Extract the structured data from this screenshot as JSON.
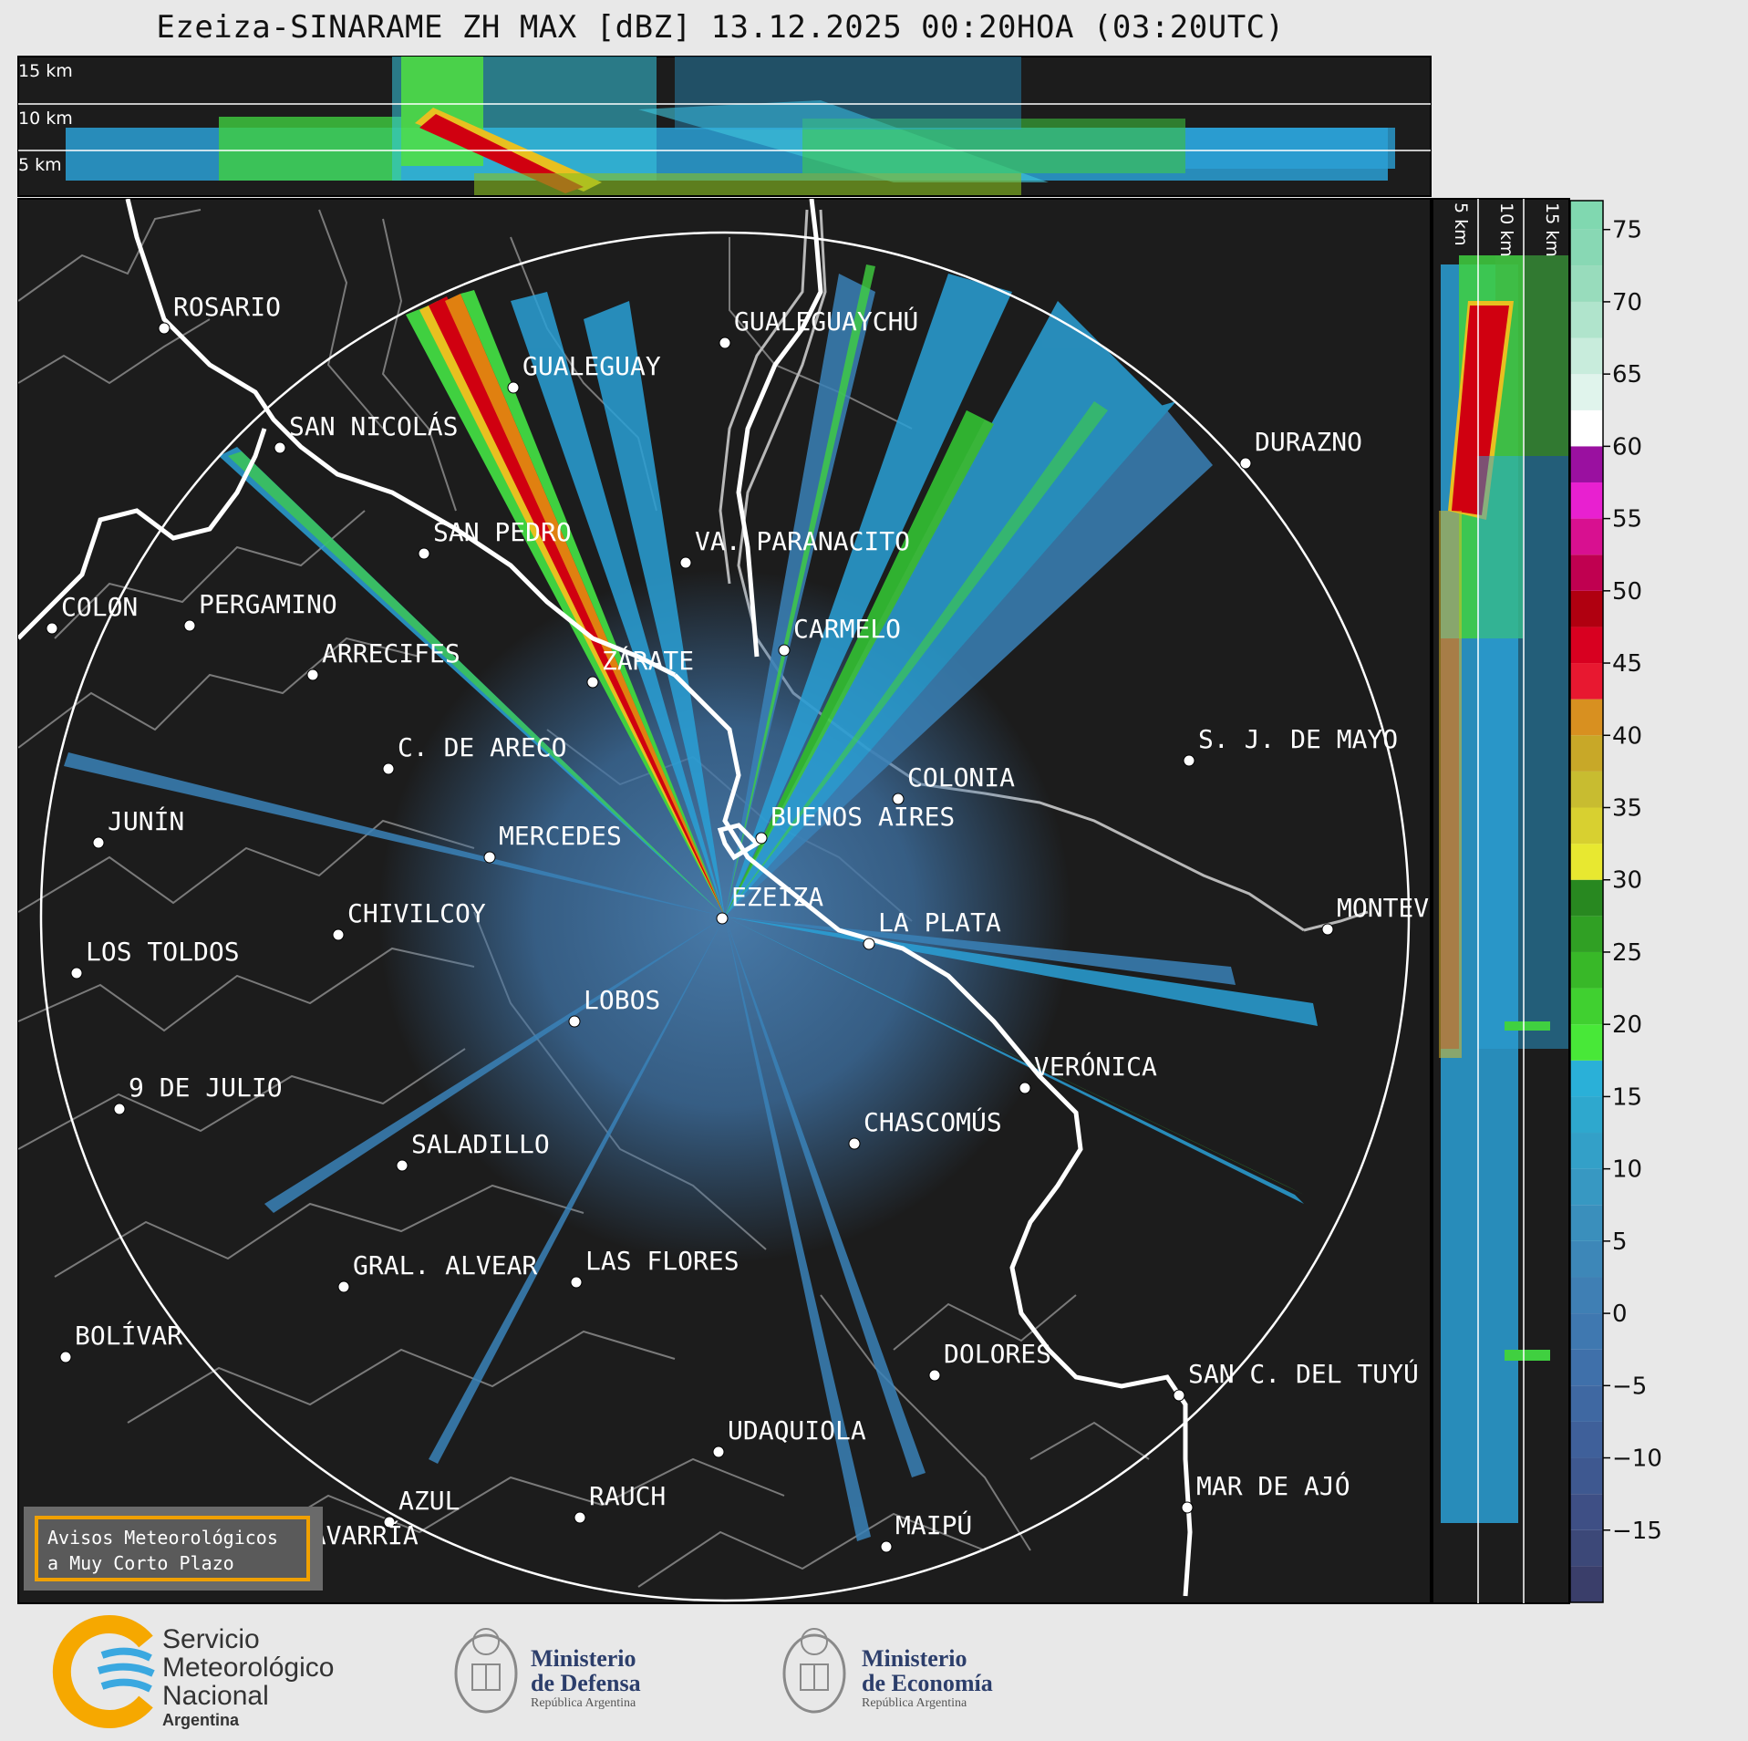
{
  "title": "Ezeiza-SINARAME ZH MAX [dBZ] 13.12.2025 00:20HOA (03:20UTC)",
  "cross_section_top": {
    "labels": [
      "15 km",
      "10 km",
      "5 km"
    ]
  },
  "cross_section_right": {
    "labels": [
      "5 km",
      "10 km",
      "15 km"
    ]
  },
  "colorbar": {
    "ticks": [
      "75",
      "70",
      "65",
      "60",
      "55",
      "50",
      "45",
      "40",
      "35",
      "30",
      "25",
      "20",
      "15",
      "10",
      "5",
      "0",
      "−5",
      "−10",
      "−15"
    ],
    "range": [
      -20,
      77
    ]
  },
  "cities": [
    {
      "name": "ROSARIO"
    },
    {
      "name": "GUALEGUAYCHÚ"
    },
    {
      "name": "GUALEGUAY"
    },
    {
      "name": "SAN NICOLÁS"
    },
    {
      "name": "DURAZNO"
    },
    {
      "name": "SAN PEDRO"
    },
    {
      "name": "VA. PARANACITO"
    },
    {
      "name": "COLON"
    },
    {
      "name": "PERGAMINO"
    },
    {
      "name": "CARMELO"
    },
    {
      "name": "ARRECIFES"
    },
    {
      "name": "ZÁRATE"
    },
    {
      "name": "S. J. DE MAYO"
    },
    {
      "name": "C. DE ARECO"
    },
    {
      "name": "COLONIA"
    },
    {
      "name": "JUNÍN"
    },
    {
      "name": "BUENOS AIRES"
    },
    {
      "name": "MERCEDES"
    },
    {
      "name": "MONTEV"
    },
    {
      "name": "CHIVILCOY"
    },
    {
      "name": "EZEIZA"
    },
    {
      "name": "LA PLATA"
    },
    {
      "name": "LOS TOLDOS"
    },
    {
      "name": "LOBOS"
    },
    {
      "name": "VERÓNICA"
    },
    {
      "name": "9 DE JULIO"
    },
    {
      "name": "CHASCOMÚS"
    },
    {
      "name": "SALADILLO"
    },
    {
      "name": "GRAL. ALVEAR"
    },
    {
      "name": "LAS FLORES"
    },
    {
      "name": "BOLÍVAR"
    },
    {
      "name": "DOLORES"
    },
    {
      "name": "SAN C. DEL TUYÚ"
    },
    {
      "name": "UDAQUIOLA"
    },
    {
      "name": "MAR DE AJÓ"
    },
    {
      "name": "AZUL"
    },
    {
      "name": "RAUCH"
    },
    {
      "name": "OLAVARRÍA"
    },
    {
      "name": "MAIPÚ"
    }
  ],
  "avisos": {
    "line1": "Avisos Meteorológicos",
    "line2": "a Muy Corto Plazo"
  },
  "footer": {
    "smn": {
      "line1": "Servicio",
      "line2": "Meteorológico",
      "line3": "Nacional",
      "line4": "Argentina"
    },
    "defensa": {
      "line1": "Ministerio",
      "line2": "de Defensa",
      "line3": "República Argentina"
    },
    "economia": {
      "line1": "Ministerio",
      "line2": "de Economía",
      "line3": "República Argentina"
    }
  },
  "colors": {
    "map_background": "#1c1c1c",
    "range_ring": "#ffffff",
    "coastline": "#ffffff",
    "borders": "#7a7a7a",
    "avisos_border": "#f0a000",
    "echo_weak": "#3a82b8",
    "echo_medium": "#2aa8d8",
    "echo_green": "#40e030",
    "echo_yellow": "#e8e020",
    "echo_orange": "#e08010",
    "echo_red": "#d00010"
  }
}
